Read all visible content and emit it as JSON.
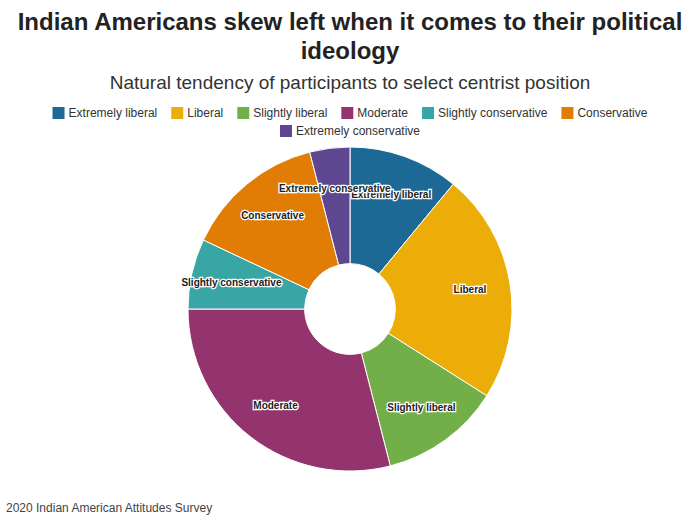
{
  "chart_data": {
    "type": "pie",
    "title": "Indian Americans skew left when it comes to their political ideology",
    "subtitle": "Natural tendency of participants to select centrist position",
    "source": "2020 Indian American Attitudes Survey",
    "categories": [
      "Extremely liberal",
      "Liberal",
      "Slightly liberal",
      "Moderate",
      "Slightly conservative",
      "Conservative",
      "Extremely conservative"
    ],
    "values": [
      11,
      23,
      12,
      29,
      7,
      14,
      4
    ],
    "colors": [
      "#1d6996",
      "#edad08",
      "#73af48",
      "#94346e",
      "#38a6a5",
      "#e17c05",
      "#5f4690"
    ],
    "legend": "top"
  }
}
